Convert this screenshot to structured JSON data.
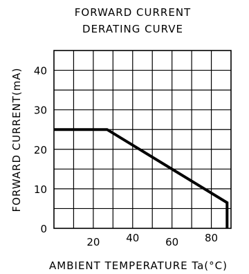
{
  "chart_data": {
    "type": "line",
    "title_line1": "FORWARD  CURRENT",
    "title_line2": "DERATING  CURVE",
    "xlabel": "AMBIENT  TEMPERATURE  Ta(°C)",
    "ylabel": "FORWARD  CURRENT(mA)",
    "xlim": [
      0,
      90
    ],
    "ylim": [
      0,
      45
    ],
    "x_ticks": [
      20,
      40,
      60,
      80
    ],
    "y_ticks": [
      0,
      10,
      20,
      30,
      40
    ],
    "grid": true,
    "series": [
      {
        "x": [
          0,
          27,
          88,
          88
        ],
        "y": [
          25,
          25,
          6.5,
          0
        ]
      }
    ]
  }
}
